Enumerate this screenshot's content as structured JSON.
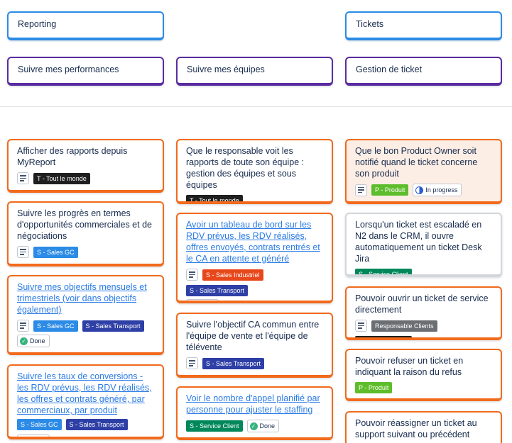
{
  "colors": {
    "epic_blue": "#2b8be6",
    "epic_purple": "#5a2ca0",
    "story_orange": "#f26a1b",
    "tag_black": "#1f1f1f",
    "tag_blue": "#2b8be6",
    "tag_indigo": "#2e3fa6",
    "tag_red": "#e8471c",
    "tag_green": "#00875a",
    "tag_lime": "#5ebd2b",
    "tag_grey": "#6b6e73"
  },
  "epics": {
    "reporting": "Reporting",
    "tickets": "Tickets",
    "perf": "Suivre mes performances",
    "teams": "Suivre mes équipes",
    "ticket_mgmt": "Gestion de ticket"
  },
  "status": {
    "done": "Done",
    "in_progress": "In progress"
  },
  "tags": {
    "everyone": "T - Tout le monde",
    "sales_gc": "S - Sales GC",
    "sales_transport": "S - Sales Transport",
    "sales_industriel": "S - Sales Industriel",
    "service_client": "S - Service Client",
    "produit": "P - Produit",
    "resp_clients": "Responsable Clients"
  },
  "stories": {
    "c1": "Afficher des rapports depuis MyReport",
    "c2": "Suivre les progrès en termes d'opportunités commerciales et de négociations",
    "c3": "Suivre mes objectifs mensuels et trimestriels (voir dans objectifs également)",
    "c4": "Suivre les taux de conversions - les RDV prévus, les RDV réalisés, les offres et contrats généré, par commerciaux, par produit",
    "c5": "Que le responsable voit les rapports de toute son équipe : gestion des équipes et sous équipes",
    "c6": "Avoir un tableau de bord sur les RDV prévus, les RDV réalisés, offres envoyés, contrats rentrés et le CA en attente et généré",
    "c7": "Suivre l'objectif CA commun entre l'équipe de vente et l'équipe de télévente",
    "c8": "Voir le nombre d'appel planifié par personne pour ajuster le staffing",
    "c9": "Que le bon Product Owner soit notifié quand le ticket concerne son produit",
    "c10": "Lorsqu'un ticket est escaladé en N2 dans le CRM, il ouvre automatiquement un ticket Desk Jira",
    "c11": "Pouvoir ouvrir un ticket de service directement",
    "c12": "Pouvoir refuser un ticket en indiquant la raison du refus",
    "c13": "Pouvoir réassigner un ticket au support suivant ou précédent"
  }
}
